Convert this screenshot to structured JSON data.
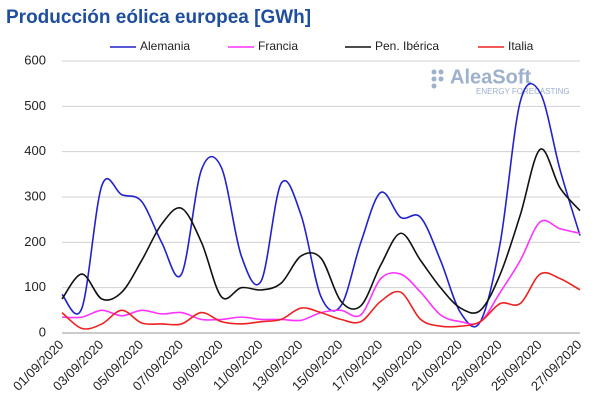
{
  "chart_data": {
    "type": "line",
    "title": "Producción eólica europea [GWh]",
    "logo": {
      "name": "AleaSoft",
      "tagline": "ENERGY FORECASTING"
    },
    "categories": [
      "01/09/2020",
      null,
      "03/09/2020",
      null,
      "05/09/2020",
      null,
      "07/09/2020",
      null,
      "09/09/2020",
      null,
      "11/09/2020",
      null,
      "13/09/2020",
      null,
      "15/09/2020",
      null,
      "17/09/2020",
      null,
      "19/09/2020",
      null,
      "21/09/2020",
      null,
      "23/09/2020",
      null,
      "25/09/2020",
      null,
      "27/09/2020"
    ],
    "series": [
      {
        "name": "Alemania",
        "color": "#2222cc",
        "values": [
          85,
          55,
          325,
          305,
          290,
          200,
          130,
          360,
          365,
          170,
          115,
          330,
          260,
          80,
          60,
          200,
          310,
          255,
          255,
          160,
          45,
          25,
          200,
          510,
          530,
          360,
          215
        ]
      },
      {
        "name": "Francia",
        "color": "#ff33ff",
        "values": [
          35,
          35,
          50,
          38,
          50,
          42,
          45,
          30,
          30,
          35,
          30,
          30,
          28,
          45,
          50,
          40,
          120,
          130,
          90,
          40,
          25,
          25,
          90,
          160,
          245,
          230,
          220
        ]
      },
      {
        "name": "Pen. Ibérica",
        "color": "#111111",
        "values": [
          75,
          130,
          75,
          90,
          160,
          240,
          275,
          200,
          80,
          100,
          95,
          110,
          170,
          165,
          70,
          60,
          150,
          220,
          160,
          100,
          55,
          50,
          130,
          260,
          405,
          320,
          270
        ]
      },
      {
        "name": "Italia",
        "color": "#ee2222",
        "values": [
          45,
          10,
          20,
          50,
          22,
          20,
          20,
          45,
          25,
          20,
          25,
          30,
          55,
          45,
          30,
          25,
          70,
          90,
          30,
          15,
          15,
          25,
          65,
          65,
          130,
          120,
          95
        ]
      }
    ],
    "ylim": [
      0,
      600
    ],
    "yticks": [
      0,
      100,
      200,
      300,
      400,
      500,
      600
    ],
    "grid": true
  }
}
